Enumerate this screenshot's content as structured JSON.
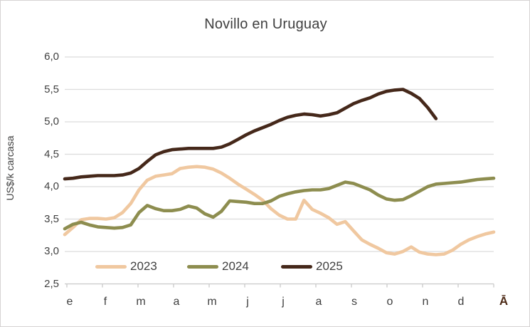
{
  "title": "Novillo en Uruguay",
  "y_axis": {
    "title": "US$/k carcasa",
    "tick_labels": [
      "6,0",
      "5,5",
      "5,0",
      "4,5",
      "4,0",
      "3,5",
      "3,0",
      "2,5"
    ],
    "min": 2.5,
    "max": 6.0,
    "step": 0.5
  },
  "x_axis": {
    "month_labels": [
      "e",
      "f",
      "m",
      "a",
      "m",
      "j",
      "j",
      "a",
      "s",
      "o",
      "n",
      "d"
    ],
    "last_label": "Ā",
    "last_label_color": "#4d2b17"
  },
  "legend": [
    {
      "label": "2023",
      "color": "#f0c8a0"
    },
    {
      "label": "2024",
      "color": "#8d8d4f"
    },
    {
      "label": "2025",
      "color": "#45281a"
    }
  ],
  "colors": {
    "gridline": "#dcdcdc",
    "axis_line": "#c9c9c9",
    "tick": "#c9c9c9",
    "text": "#404040",
    "background": "#ffffff"
  },
  "chart_data": {
    "type": "line",
    "title": "Novillo en Uruguay",
    "xlabel": "",
    "ylabel": "US$/k carcasa",
    "ylim": [
      2.5,
      6.0
    ],
    "x_unit": "week-of-year",
    "x_month_ticks": [
      "e",
      "f",
      "m",
      "a",
      "m",
      "j",
      "j",
      "a",
      "s",
      "o",
      "n",
      "d"
    ],
    "grid": true,
    "legend_position": "bottom-inside",
    "series": [
      {
        "name": "2023",
        "color": "#f0c8a0",
        "values": [
          3.26,
          3.37,
          3.49,
          3.51,
          3.51,
          3.5,
          3.52,
          3.6,
          3.74,
          3.95,
          4.1,
          4.16,
          4.18,
          4.2,
          4.28,
          4.3,
          4.31,
          4.3,
          4.27,
          4.21,
          4.13,
          4.04,
          3.96,
          3.88,
          3.79,
          3.66,
          3.56,
          3.5,
          3.5,
          3.79,
          3.65,
          3.59,
          3.52,
          3.42,
          3.46,
          3.32,
          3.18,
          3.11,
          3.05,
          2.98,
          2.96,
          3.0,
          3.07,
          2.99,
          2.96,
          2.95,
          2.96,
          3.02,
          3.11,
          3.18,
          3.23,
          3.27,
          3.3
        ]
      },
      {
        "name": "2024",
        "color": "#8d8d4f",
        "values": [
          3.35,
          3.42,
          3.45,
          3.41,
          3.38,
          3.37,
          3.36,
          3.37,
          3.41,
          3.6,
          3.71,
          3.66,
          3.63,
          3.63,
          3.65,
          3.7,
          3.67,
          3.58,
          3.53,
          3.62,
          3.78,
          3.77,
          3.76,
          3.74,
          3.74,
          3.78,
          3.85,
          3.89,
          3.92,
          3.94,
          3.95,
          3.95,
          3.97,
          4.02,
          4.07,
          4.05,
          4.0,
          3.95,
          3.87,
          3.81,
          3.79,
          3.8,
          3.86,
          3.93,
          4.0,
          4.04,
          4.05,
          4.06,
          4.07,
          4.09,
          4.11,
          4.12,
          4.13
        ]
      },
      {
        "name": "2025",
        "color": "#45281a",
        "values": [
          4.12,
          4.13,
          4.15,
          4.16,
          4.17,
          4.17,
          4.17,
          4.18,
          4.21,
          4.28,
          4.39,
          4.49,
          4.54,
          4.57,
          4.58,
          4.59,
          4.59,
          4.59,
          4.59,
          4.61,
          4.66,
          4.73,
          4.8,
          4.86,
          4.91,
          4.96,
          5.02,
          5.07,
          5.1,
          5.12,
          5.11,
          5.09,
          5.11,
          5.14,
          5.21,
          5.28,
          5.33,
          5.37,
          5.43,
          5.47,
          5.49,
          5.5,
          5.44,
          5.36,
          5.22,
          5.05
        ]
      }
    ]
  }
}
